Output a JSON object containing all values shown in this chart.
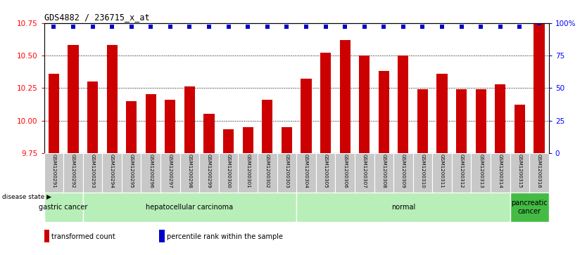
{
  "title": "GDS4882 / 236715_x_at",
  "samples": [
    "GSM1200291",
    "GSM1200292",
    "GSM1200293",
    "GSM1200294",
    "GSM1200295",
    "GSM1200296",
    "GSM1200297",
    "GSM1200298",
    "GSM1200299",
    "GSM1200300",
    "GSM1200301",
    "GSM1200302",
    "GSM1200303",
    "GSM1200304",
    "GSM1200305",
    "GSM1200306",
    "GSM1200307",
    "GSM1200308",
    "GSM1200309",
    "GSM1200310",
    "GSM1200311",
    "GSM1200312",
    "GSM1200313",
    "GSM1200314",
    "GSM1200315",
    "GSM1200316"
  ],
  "bar_values": [
    10.36,
    10.58,
    10.3,
    10.58,
    10.15,
    10.2,
    10.16,
    10.26,
    10.05,
    9.93,
    9.95,
    10.16,
    9.95,
    10.32,
    10.52,
    10.62,
    10.5,
    10.38,
    10.5,
    10.24,
    10.36,
    10.24,
    10.24,
    10.28,
    10.12,
    10.75
  ],
  "percentile_values": [
    97,
    97,
    97,
    97,
    97,
    97,
    97,
    97,
    97,
    97,
    97,
    97,
    97,
    97,
    97,
    97,
    97,
    97,
    97,
    97,
    97,
    97,
    97,
    97,
    97,
    100
  ],
  "bar_color": "#cc0000",
  "percentile_color": "#0000cc",
  "ylim_left": [
    9.75,
    10.75
  ],
  "ylim_right": [
    0,
    100
  ],
  "yticks_left": [
    9.75,
    10.0,
    10.25,
    10.5,
    10.75
  ],
  "yticks_right": [
    0,
    25,
    50,
    75,
    100
  ],
  "disease_groups": [
    {
      "label": "gastric cancer",
      "start": 0,
      "end": 2
    },
    {
      "label": "hepatocellular carcinoma",
      "start": 2,
      "end": 13
    },
    {
      "label": "normal",
      "start": 13,
      "end": 24
    },
    {
      "label": "pancreatic\ncancer",
      "start": 24,
      "end": 26
    }
  ],
  "disease_label": "disease state ▶",
  "legend_items": [
    {
      "color": "#cc0000",
      "label": "transformed count"
    },
    {
      "color": "#0000cc",
      "label": "percentile rank within the sample"
    }
  ],
  "bg_color": "#ffffff",
  "plot_bg_color": "#ffffff",
  "tick_label_bg": "#c8c8c8",
  "green_light": "#b8eeb8",
  "green_dark": "#44bb44"
}
